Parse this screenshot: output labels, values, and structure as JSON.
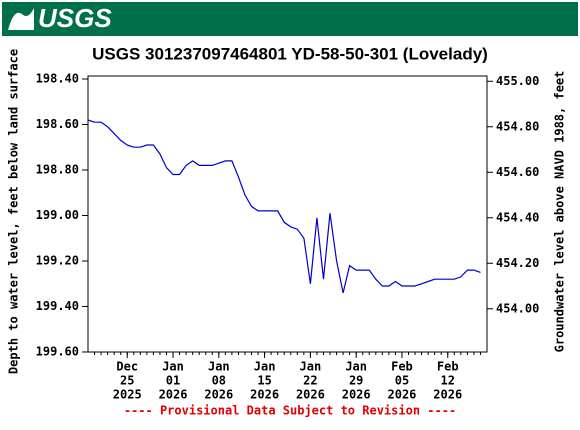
{
  "header": {
    "logo": "USGS"
  },
  "chart_data": {
    "type": "line",
    "title": "USGS 301237097464801 YD-58-50-301 (Lovelady)",
    "ylabel": "Depth to water level, feet below land surface",
    "y2label": "Groundwater level above NAVD 1988, feet",
    "footer": "---- Provisional Data Subject to Revision ----",
    "x": [
      "2025-12-19",
      "2025-12-20",
      "2025-12-21",
      "2025-12-22",
      "2025-12-23",
      "2025-12-24",
      "2025-12-25",
      "2025-12-26",
      "2025-12-27",
      "2025-12-28",
      "2025-12-29",
      "2025-12-30",
      "2025-12-31",
      "2026-01-01",
      "2026-01-02",
      "2026-01-03",
      "2026-01-04",
      "2026-01-05",
      "2026-01-06",
      "2026-01-07",
      "2026-01-08",
      "2026-01-09",
      "2026-01-10",
      "2026-01-11",
      "2026-01-12",
      "2026-01-13",
      "2026-01-14",
      "2026-01-15",
      "2026-01-16",
      "2026-01-17",
      "2026-01-18",
      "2026-01-19",
      "2026-01-20",
      "2026-01-21",
      "2026-01-22",
      "2026-01-23",
      "2026-01-24",
      "2026-01-25",
      "2026-01-26",
      "2026-01-27",
      "2026-01-28",
      "2026-01-29",
      "2026-01-30",
      "2026-01-31",
      "2026-02-01",
      "2026-02-02",
      "2026-02-03",
      "2026-02-04",
      "2026-02-05",
      "2026-02-06",
      "2026-02-07",
      "2026-02-08",
      "2026-02-09",
      "2026-02-10",
      "2026-02-11",
      "2026-02-12",
      "2026-02-13",
      "2026-02-14",
      "2026-02-15",
      "2026-02-16",
      "2026-02-17"
    ],
    "series": [
      {
        "name": "Depth to water level",
        "color": "#0000cc",
        "values": [
          198.58,
          198.59,
          198.59,
          198.61,
          198.64,
          198.67,
          198.69,
          198.7,
          198.7,
          198.69,
          198.69,
          198.73,
          198.79,
          198.82,
          198.82,
          198.78,
          198.76,
          198.78,
          198.78,
          198.78,
          198.77,
          198.76,
          198.76,
          198.83,
          198.91,
          198.96,
          198.98,
          198.98,
          198.98,
          198.98,
          199.03,
          199.05,
          199.06,
          199.1,
          199.3,
          199.01,
          199.28,
          198.99,
          199.2,
          199.34,
          199.22,
          199.24,
          199.24,
          199.24,
          199.28,
          199.31,
          199.31,
          199.29,
          199.31,
          199.31,
          199.31,
          199.3,
          199.29,
          199.28,
          199.28,
          199.28,
          199.28,
          199.27,
          199.24,
          199.24,
          199.25
        ]
      }
    ],
    "xlim": [
      "2025-12-19",
      "2026-02-18"
    ],
    "xticks": [
      {
        "value": "2025-12-25",
        "label": [
          "Dec",
          "25",
          "2025"
        ]
      },
      {
        "value": "2026-01-01",
        "label": [
          "Jan",
          "01",
          "2026"
        ]
      },
      {
        "value": "2026-01-08",
        "label": [
          "Jan",
          "08",
          "2026"
        ]
      },
      {
        "value": "2026-01-15",
        "label": [
          "Jan",
          "15",
          "2026"
        ]
      },
      {
        "value": "2026-01-22",
        "label": [
          "Jan",
          "22",
          "2026"
        ]
      },
      {
        "value": "2026-01-29",
        "label": [
          "Jan",
          "29",
          "2026"
        ]
      },
      {
        "value": "2026-02-05",
        "label": [
          "Feb",
          "05",
          "2026"
        ]
      },
      {
        "value": "2026-02-12",
        "label": [
          "Feb",
          "12",
          "2026"
        ]
      }
    ],
    "ylim": [
      198.4,
      199.6
    ],
    "y_inverted": true,
    "yticks": [
      {
        "value": 198.4,
        "label": "198.40"
      },
      {
        "value": 198.6,
        "label": "198.60"
      },
      {
        "value": 198.8,
        "label": "198.80"
      },
      {
        "value": 199.0,
        "label": "199.00"
      },
      {
        "value": 199.2,
        "label": "199.20"
      },
      {
        "value": 199.4,
        "label": "199.40"
      },
      {
        "value": 199.6,
        "label": "199.60"
      }
    ],
    "y2lim": [
      453.81,
      455.01
    ],
    "y2ticks": [
      {
        "value": 454.0,
        "label": "454.00"
      },
      {
        "value": 454.2,
        "label": "454.20"
      },
      {
        "value": 454.4,
        "label": "454.40"
      },
      {
        "value": 454.6,
        "label": "454.60"
      },
      {
        "value": 454.8,
        "label": "454.80"
      },
      {
        "value": 455.0,
        "label": "455.00"
      }
    ],
    "grid": false
  }
}
